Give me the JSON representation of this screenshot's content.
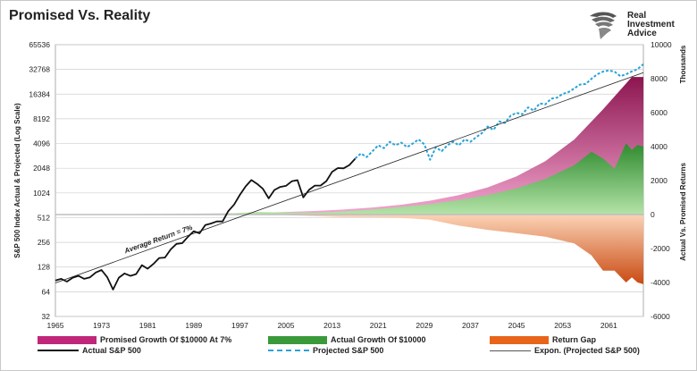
{
  "title": "Promised Vs. Reality",
  "brand": {
    "line1": "Real",
    "line2": "Investment",
    "line3": "Advice"
  },
  "chart_data": {
    "type": "line",
    "xlabel": "",
    "x_ticks": [
      1965,
      1973,
      1981,
      1989,
      1997,
      2005,
      2013,
      2021,
      2029,
      2037,
      2045,
      2053,
      2061
    ],
    "xlim": [
      1965,
      2067
    ],
    "left_axis": {
      "label": "S&P 500 Index Actual & Projected (Log Scale)",
      "scale": "log2",
      "ticks": [
        32,
        64,
        128,
        256,
        512,
        1024,
        2048,
        4096,
        8192,
        16384,
        32768,
        65536
      ]
    },
    "right_axis": {
      "label": "Actual Vs. Promised Returns",
      "units_label": "Thousands",
      "ticks": [
        -6000,
        -4000,
        -2000,
        0,
        2000,
        4000,
        6000,
        8000,
        10000
      ],
      "ylim": [
        -6000,
        10000
      ]
    },
    "annotation": "Average Return = 7%",
    "grid": "horizontal",
    "legend_position": "bottom",
    "series": [
      {
        "name": "Promised Growth Of $10000 At 7%",
        "kind": "area",
        "axis": "right",
        "color": "#c0277a",
        "x": [
          1965,
          1975,
          1985,
          1995,
          2000,
          2005,
          2010,
          2015,
          2020,
          2025,
          2030,
          2035,
          2040,
          2045,
          2050,
          2055,
          2060,
          2065,
          2067
        ],
        "values": [
          10,
          20,
          39,
          76,
          107,
          150,
          210,
          295,
          414,
          580,
          814,
          1141,
          1601,
          2245,
          3150,
          4416,
          6190,
          8100,
          8100
        ]
      },
      {
        "name": "Actual Growth Of $10000",
        "kind": "area",
        "axis": "right",
        "color": "#3a9a3a",
        "x": [
          1965,
          1975,
          1985,
          1995,
          2000,
          2005,
          2010,
          2013,
          2018,
          2020,
          2025,
          2030,
          2035,
          2040,
          2045,
          2050,
          2055,
          2058,
          2060,
          2062,
          2064,
          2065,
          2066,
          2067
        ],
        "values": [
          10,
          12,
          30,
          60,
          150,
          120,
          110,
          150,
          250,
          300,
          450,
          620,
          850,
          1150,
          1550,
          2100,
          2900,
          3700,
          3300,
          2700,
          4200,
          3800,
          4100,
          4000
        ]
      },
      {
        "name": "Return Gap",
        "kind": "area",
        "axis": "right",
        "color": "#e8641a",
        "x": [
          1965,
          1975,
          1985,
          1995,
          2000,
          2005,
          2010,
          2015,
          2020,
          2025,
          2030,
          2035,
          2040,
          2045,
          2050,
          2055,
          2058,
          2060,
          2062,
          2064,
          2065,
          2066,
          2067
        ],
        "values": [
          0,
          -5,
          -10,
          -15,
          0,
          -30,
          -100,
          -150,
          -160,
          -200,
          -300,
          -650,
          -900,
          -1100,
          -1300,
          -1700,
          -2400,
          -3300,
          -3300,
          -4000,
          -3700,
          -4000,
          -4100
        ]
      },
      {
        "name": "Actual S&P 500",
        "kind": "line",
        "axis": "left",
        "color": "#111111",
        "x": [
          1965,
          1966,
          1967,
          1968,
          1969,
          1970,
          1971,
          1972,
          1973,
          1974,
          1975,
          1976,
          1977,
          1978,
          1979,
          1980,
          1981,
          1982,
          1983,
          1984,
          1985,
          1986,
          1987,
          1988,
          1989,
          1990,
          1991,
          1992,
          1993,
          1994,
          1995,
          1996,
          1997,
          1998,
          1999,
          2000,
          2001,
          2002,
          2003,
          2004,
          2005,
          2006,
          2007,
          2008,
          2009,
          2010,
          2011,
          2012,
          2013,
          2014,
          2015,
          2016,
          2017
        ],
        "values": [
          88,
          92,
          85,
          95,
          100,
          92,
          96,
          110,
          118,
          96,
          68,
          95,
          107,
          100,
          105,
          135,
          122,
          140,
          165,
          167,
          210,
          245,
          250,
          300,
          350,
          330,
          415,
          435,
          460,
          460,
          616,
          740,
          970,
          1229,
          1469,
          1320,
          1150,
          880,
          1112,
          1212,
          1248,
          1418,
          1468,
          903,
          1115,
          1258,
          1258,
          1426,
          1848,
          2059,
          2044,
          2239,
          2674
        ]
      },
      {
        "name": "Projected S&P 500",
        "kind": "line",
        "axis": "left",
        "color": "#2aa3d8",
        "dashed": true,
        "x": [
          2017,
          2018,
          2019,
          2020,
          2021,
          2022,
          2023,
          2024,
          2025,
          2026,
          2027,
          2028,
          2029,
          2030,
          2031,
          2032,
          2033,
          2034,
          2035,
          2036,
          2037,
          2038,
          2039,
          2040,
          2041,
          2042,
          2043,
          2044,
          2045,
          2046,
          2047,
          2048,
          2049,
          2050,
          2051,
          2052,
          2053,
          2054,
          2055,
          2056,
          2057,
          2058,
          2059,
          2060,
          2061,
          2062,
          2063,
          2064,
          2065,
          2066,
          2067
        ],
        "values": [
          2700,
          3100,
          2800,
          3300,
          3900,
          3600,
          4300,
          3900,
          4200,
          3700,
          4100,
          4600,
          4000,
          2600,
          3700,
          3300,
          3900,
          4300,
          3900,
          4600,
          4300,
          4900,
          5500,
          6600,
          6000,
          7600,
          7300,
          9000,
          9700,
          9300,
          11300,
          10300,
          12600,
          12300,
          14400,
          14800,
          16500,
          17300,
          19200,
          21400,
          21800,
          25200,
          28600,
          30800,
          31800,
          30800,
          27100,
          28600,
          31000,
          33000,
          38000
        ]
      },
      {
        "name": "Expon. (Projected S&P 500)",
        "kind": "line",
        "axis": "left",
        "color": "#222222",
        "x": [
          1965,
          2067
        ],
        "values": [
          82,
          30000
        ]
      }
    ]
  },
  "legend": [
    {
      "label": "Promised Growth Of $10000 At 7%",
      "kind": "box",
      "color": "#c0277a"
    },
    {
      "label": "Actual Growth Of $10000",
      "kind": "box",
      "color": "#3a9a3a"
    },
    {
      "label": "Return Gap",
      "kind": "box",
      "color": "#e8641a"
    },
    {
      "label": "Actual S&P 500",
      "kind": "line",
      "color": "#111111"
    },
    {
      "label": "Projected S&P 500",
      "kind": "dashed",
      "color": "#2aa3d8"
    },
    {
      "label": "Expon. (Projected S&P 500)",
      "kind": "thin",
      "color": "#555555"
    }
  ]
}
